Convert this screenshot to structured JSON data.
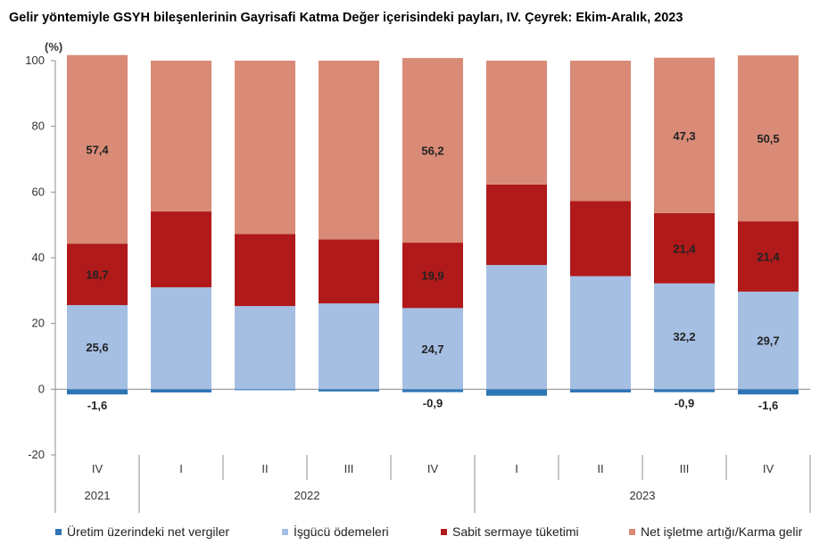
{
  "title": "Gelir yöntemiyle GSYH bileşenlerinin Gayrisafi Katma Değer içerisindeki payları, IV. Çeyrek: Ekim-Aralık, 2023",
  "chart_data": {
    "type": "bar",
    "stacked": true,
    "ylabel": "(%)",
    "ylim": [
      -20,
      100
    ],
    "yticks": [
      -20,
      0,
      20,
      40,
      60,
      80,
      100
    ],
    "grid": false,
    "legend_position": "bottom",
    "quarters": [
      "IV",
      "I",
      "II",
      "III",
      "IV",
      "I",
      "II",
      "III",
      "IV"
    ],
    "years": [
      {
        "label": "2021",
        "span": 1
      },
      {
        "label": "2022",
        "span": 4
      },
      {
        "label": "2023",
        "span": 4
      }
    ],
    "series": [
      {
        "name": "Üretim üzerindeki net vergiler",
        "color": "#2e75b6",
        "values": [
          -1.6,
          -1.0,
          -0.3,
          -0.7,
          -0.9,
          -2.0,
          -1.0,
          -0.9,
          -1.6
        ],
        "labels": [
          "-1,6",
          "",
          "",
          "",
          "-0,9",
          "",
          "",
          "-0,9",
          "-1,6"
        ]
      },
      {
        "name": "İşgücü ödemeleri",
        "color": "#a5bfe3",
        "values": [
          25.6,
          31.0,
          25.3,
          26.1,
          24.7,
          37.8,
          34.4,
          32.2,
          29.7
        ],
        "labels": [
          "25,6",
          "",
          "",
          "",
          "24,7",
          "",
          "",
          "32,2",
          "29,7"
        ]
      },
      {
        "name": "Sabit sermaye tüketimi",
        "color": "#b01a1a",
        "values": [
          18.7,
          23.1,
          21.9,
          19.5,
          19.9,
          24.5,
          22.9,
          21.4,
          21.4
        ],
        "labels": [
          "18,7",
          "",
          "",
          "",
          "19,9",
          "",
          "",
          "21,4",
          "21,4"
        ]
      },
      {
        "name": "Net işletme artığı/Karma gelir",
        "color": "#d98b77",
        "values": [
          57.4,
          45.9,
          52.8,
          54.4,
          56.2,
          37.7,
          42.7,
          47.3,
          50.5
        ],
        "labels": [
          "57,4",
          "",
          "",
          "",
          "56,2",
          "",
          "",
          "47,3",
          "50,5"
        ]
      }
    ]
  }
}
